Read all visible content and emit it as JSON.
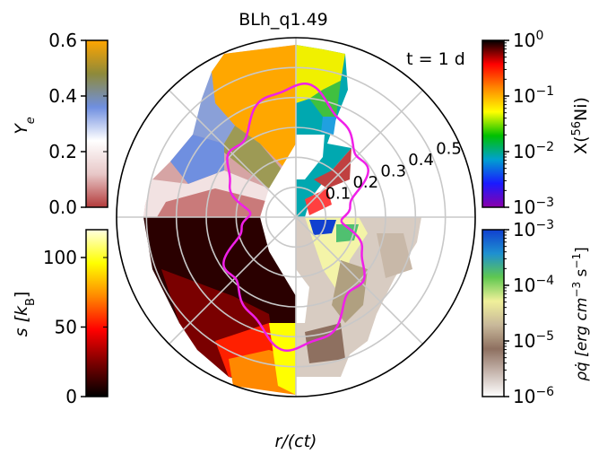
{
  "chart_data": {
    "type": "polar-quadrant-map",
    "title": "BLh_q1.49",
    "time_label": "t = 1 d",
    "radial_axis_label": "r/(ct)",
    "radial_ticks": [
      "0.1",
      "0.2",
      "0.3",
      "0.4",
      "0.5"
    ],
    "radial_tick_values": [
      0.1,
      0.2,
      0.3,
      0.4,
      0.5
    ],
    "rmax": 0.6,
    "contour_color": "#f020e8",
    "quadrants": {
      "top-left": "Ye",
      "top-right": "X(56Ni)",
      "bottom-left": "s [kB]",
      "bottom-right": "rho qdot [erg cm^-3 s^-1]"
    },
    "colorbars": {
      "ye": {
        "label_main": "Y",
        "label_sub": "e",
        "ticks": [
          "0.0",
          "0.2",
          "0.4",
          "0.6"
        ],
        "tick_values": [
          0.0,
          0.2,
          0.4,
          0.6
        ],
        "range": [
          0.0,
          0.6
        ],
        "colors": [
          "#b33a3a",
          "#e8c8c8",
          "#ffffff",
          "#6f8fe0",
          "#8e8a3a",
          "#ffa500"
        ]
      },
      "s": {
        "label_main": "s [k",
        "label_sub": "B",
        "label_end": "]",
        "ticks": [
          "0",
          "50",
          "100"
        ],
        "tick_values": [
          0,
          50,
          100
        ],
        "range": [
          0,
          120
        ],
        "colors": [
          "#000000",
          "#7a0000",
          "#ff0000",
          "#ff8800",
          "#ffff00",
          "#ffffe0"
        ]
      },
      "ni": {
        "label_main": "X(",
        "label_sup": "56",
        "label_end": "Ni)",
        "ticks": [
          {
            "base": "10",
            "exp": "0"
          },
          {
            "base": "10",
            "exp": "−1"
          },
          {
            "base": "10",
            "exp": "−2"
          },
          {
            "base": "10",
            "exp": "−3"
          }
        ],
        "log_range": [
          -3,
          0
        ],
        "colors": [
          "#8b00aa",
          "#1a1aff",
          "#00a0d0",
          "#00c000",
          "#ffff00",
          "#ff8800",
          "#ff0000",
          "#000000"
        ]
      },
      "q": {
        "label_main": "ρq̇ [erg cm",
        "label_sup1": "−3",
        "label_mid": " s",
        "label_sup2": "−1",
        "label_end": "]",
        "ticks": [
          {
            "base": "10",
            "exp": "−3"
          },
          {
            "base": "10",
            "exp": "−4"
          },
          {
            "base": "10",
            "exp": "−5"
          },
          {
            "base": "10",
            "exp": "−6"
          }
        ],
        "log_range": [
          -6,
          -3
        ],
        "colors": [
          "#ffffff",
          "#c8b8b0",
          "#8e7060",
          "#c8b89a",
          "#f0f09a",
          "#60c850",
          "#1e90d0",
          "#1040d0"
        ]
      }
    }
  }
}
